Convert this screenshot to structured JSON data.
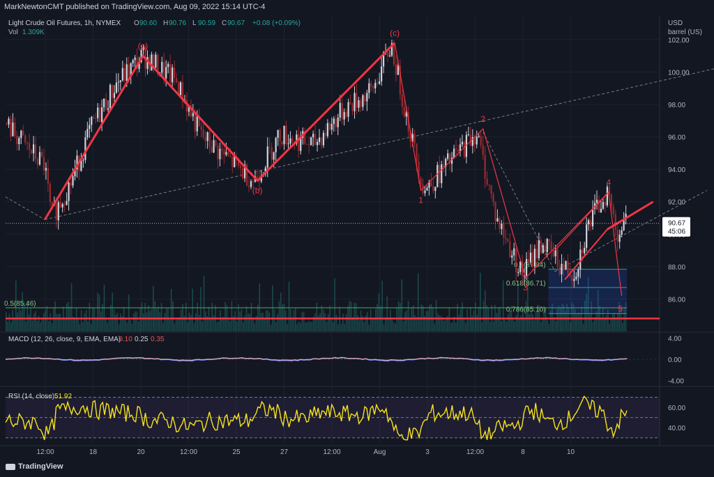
{
  "header": {
    "published": "MarkNewtonCMT published on TradingView.com, Aug 09, 2022 15:14 UTC-4"
  },
  "legend": {
    "symbol": "Light Crude Oil Futures, 1h, NYMEX",
    "open_label": "O",
    "open": "90.60",
    "high_label": "H",
    "high": "90.76",
    "low_label": "L",
    "low": "90.59",
    "close_label": "C",
    "close": "90.67",
    "change": "+0.08 (+0.09%)",
    "volume_label": "Vol",
    "volume": "1.309K"
  },
  "price_axis": {
    "unit_line1": "USD",
    "unit_line2": "barrel (US)",
    "last_price": "90.67",
    "countdown": "45:06"
  },
  "macd": {
    "label": "MACD (12, 26, close, 9, EMA, EMA)",
    "v1": "-0.10",
    "v2": "0.25",
    "v3": "0.35"
  },
  "rsi": {
    "label": "RSI (14, close)",
    "value": "51.92"
  },
  "brand": "TradingView",
  "colors": {
    "bg": "#131722",
    "grid": "#1e222d",
    "up": "#d1d4dc",
    "down": "#9c2a2e",
    "wave": "#f23645",
    "vol": "#26a69a",
    "rsi": "#f7e31f",
    "macd": "#d7a6c4",
    "fib": "#4caf50",
    "zone": "#2962ff"
  },
  "chart_data": [
    {
      "type": "candlestick",
      "title": "Light Crude Oil Futures, 1h, NYMEX",
      "ylabel": "USD barrel (US)",
      "ylim": [
        84.0,
        103.5
      ],
      "y_ticks": [
        86.0,
        88.0,
        90.0,
        92.0,
        94.0,
        96.0,
        98.0,
        100.0,
        102.0
      ],
      "x_ticks": [
        "12:00",
        "18",
        "20",
        "12:00",
        "25",
        "27",
        "12:00",
        "Aug",
        "3",
        "12:00",
        "8",
        "10"
      ],
      "price_path": [
        {
          "x": 0,
          "y": 96.8
        },
        {
          "x": 0.06,
          "y": 94.2
        },
        {
          "x": 0.07,
          "y": 91.0
        },
        {
          "x": 0.1,
          "y": 93.2
        },
        {
          "x": 0.13,
          "y": 96.5
        },
        {
          "x": 0.17,
          "y": 99.3
        },
        {
          "x": 0.21,
          "y": 101.0
        },
        {
          "x": 0.26,
          "y": 99.5
        },
        {
          "x": 0.3,
          "y": 96.0
        },
        {
          "x": 0.35,
          "y": 94.3
        },
        {
          "x": 0.38,
          "y": 93.3
        },
        {
          "x": 0.42,
          "y": 96.2
        },
        {
          "x": 0.47,
          "y": 95.5
        },
        {
          "x": 0.52,
          "y": 97.8
        },
        {
          "x": 0.56,
          "y": 98.8
        },
        {
          "x": 0.59,
          "y": 101.7
        },
        {
          "x": 0.61,
          "y": 97.8
        },
        {
          "x": 0.64,
          "y": 92.7
        },
        {
          "x": 0.68,
          "y": 94.5
        },
        {
          "x": 0.72,
          "y": 96.3
        },
        {
          "x": 0.75,
          "y": 91.0
        },
        {
          "x": 0.79,
          "y": 87.5
        },
        {
          "x": 0.82,
          "y": 89.5
        },
        {
          "x": 0.85,
          "y": 88.0
        },
        {
          "x": 0.87,
          "y": 87.6
        },
        {
          "x": 0.89,
          "y": 90.5
        },
        {
          "x": 0.92,
          "y": 92.7
        },
        {
          "x": 0.935,
          "y": 90.1
        },
        {
          "x": 0.95,
          "y": 90.67
        }
      ],
      "waves": [
        {
          "label": "(a)",
          "x": 0.21,
          "y": 101.0
        },
        {
          "label": "(b)",
          "x": 0.385,
          "y": 93.3
        },
        {
          "label": "(c)",
          "x": 0.595,
          "y": 101.8
        },
        {
          "label": "1",
          "x": 0.635,
          "y": 92.7
        },
        {
          "label": "2",
          "x": 0.73,
          "y": 96.5
        },
        {
          "label": "3",
          "x": 0.795,
          "y": 87.3
        },
        {
          "label": "4",
          "x": 0.922,
          "y": 92.6
        },
        {
          "label": "5",
          "x": 0.94,
          "y": 86.0
        }
      ],
      "fib_levels": [
        {
          "label": "0.5(87.84)",
          "value": 87.84
        },
        {
          "label": "0.618(86.71)",
          "value": 86.71
        },
        {
          "label": "0.786(85.10)",
          "value": 85.1
        },
        {
          "label": "0.5(85.46)",
          "value": 85.46
        }
      ],
      "support_line": 84.8,
      "last_price": 90.67
    },
    {
      "type": "line",
      "title": "MACD (12, 26, close, 9, EMA, EMA)",
      "ylim": [
        -5.0,
        5.0
      ],
      "y_ticks": [
        4.0,
        0.0,
        -4.0
      ]
    },
    {
      "type": "line",
      "title": "RSI (14, close)",
      "ylim": [
        25,
        80
      ],
      "y_ticks": [
        60.0,
        40.0
      ],
      "last_value": 51.92
    }
  ]
}
